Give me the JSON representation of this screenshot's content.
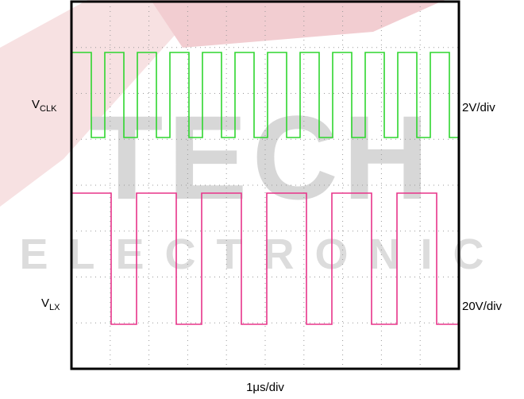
{
  "labels": {
    "clk_name": "V",
    "clk_sub": "CLK",
    "clk_scale": "2V/div",
    "lx_name": "V",
    "lx_sub": "LX",
    "lx_scale": "20V/div",
    "time_scale": "1μs/div"
  },
  "watermark": {
    "big": "TECH",
    "small": "ELECTRONIC"
  }
}
